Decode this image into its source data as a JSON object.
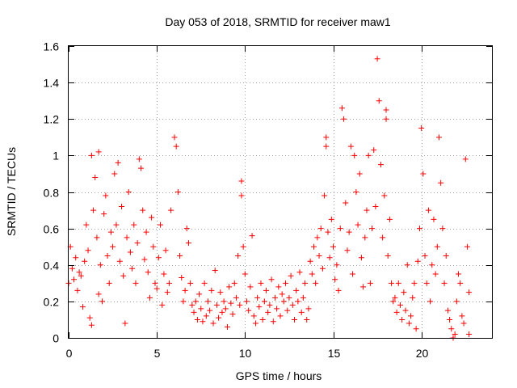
{
  "chart_data": {
    "type": "scatter",
    "title": "Day 053 of 2018, SRMTID for receiver maw1",
    "xlabel": "GPS time / hours",
    "ylabel": "SRMTID / TECUs",
    "xlim": [
      0,
      24
    ],
    "ylim": [
      0,
      1.6
    ],
    "xticks": [
      0,
      5,
      10,
      15,
      20
    ],
    "yticks": [
      0,
      0.2,
      0.4,
      0.6,
      0.8,
      1,
      1.2,
      1.4,
      1.6
    ],
    "xtick_labels": [
      "0",
      "5",
      "10",
      "15",
      "20"
    ],
    "ytick_labels": [
      "0",
      "0.2",
      "0.4",
      "0.6",
      "0.8",
      "1",
      "1.2",
      "1.4",
      "1.6"
    ],
    "grid": true,
    "marker": "+",
    "color": "#ff0000",
    "series": [
      {
        "name": "SRMTID",
        "points": [
          [
            0.0,
            0.3
          ],
          [
            0.1,
            0.5
          ],
          [
            0.2,
            0.38
          ],
          [
            0.3,
            0.32
          ],
          [
            0.4,
            0.44
          ],
          [
            0.5,
            0.26
          ],
          [
            0.6,
            0.36
          ],
          [
            0.7,
            0.34
          ],
          [
            0.8,
            0.17
          ],
          [
            0.9,
            0.42
          ],
          [
            1.0,
            0.62
          ],
          [
            1.1,
            0.48
          ],
          [
            1.2,
            0.11
          ],
          [
            1.3,
            0.07
          ],
          [
            1.3,
            1.0
          ],
          [
            1.4,
            0.7
          ],
          [
            1.5,
            0.88
          ],
          [
            1.6,
            0.55
          ],
          [
            1.7,
            0.24
          ],
          [
            1.7,
            1.02
          ],
          [
            1.8,
            0.4
          ],
          [
            1.9,
            0.2
          ],
          [
            2.0,
            0.68
          ],
          [
            2.1,
            0.78
          ],
          [
            2.2,
            0.45
          ],
          [
            2.3,
            0.3
          ],
          [
            2.4,
            0.58
          ],
          [
            2.5,
            0.5
          ],
          [
            2.6,
            0.9
          ],
          [
            2.7,
            0.62
          ],
          [
            2.8,
            0.96
          ],
          [
            2.9,
            0.42
          ],
          [
            3.0,
            0.72
          ],
          [
            3.1,
            0.34
          ],
          [
            3.2,
            0.08
          ],
          [
            3.3,
            0.55
          ],
          [
            3.4,
            0.8
          ],
          [
            3.5,
            0.47
          ],
          [
            3.6,
            0.38
          ],
          [
            3.7,
            0.62
          ],
          [
            3.8,
            0.3
          ],
          [
            3.9,
            0.52
          ],
          [
            4.0,
            0.98
          ],
          [
            4.1,
            0.93
          ],
          [
            4.2,
            0.7
          ],
          [
            4.3,
            0.43
          ],
          [
            4.4,
            0.58
          ],
          [
            4.5,
            0.36
          ],
          [
            4.6,
            0.22
          ],
          [
            4.7,
            0.66
          ],
          [
            4.8,
            0.5
          ],
          [
            4.9,
            0.3
          ],
          [
            5.0,
            0.27
          ],
          [
            5.1,
            0.44
          ],
          [
            5.2,
            0.62
          ],
          [
            5.3,
            0.18
          ],
          [
            5.4,
            0.35
          ],
          [
            5.5,
            0.48
          ],
          [
            5.6,
            0.25
          ],
          [
            5.7,
            0.3
          ],
          [
            5.8,
            0.7
          ],
          [
            6.0,
            1.1
          ],
          [
            6.1,
            1.05
          ],
          [
            6.2,
            0.8
          ],
          [
            6.3,
            0.45
          ],
          [
            6.4,
            0.33
          ],
          [
            6.5,
            0.2
          ],
          [
            6.6,
            0.26
          ],
          [
            6.7,
            0.6
          ],
          [
            6.8,
            0.52
          ],
          [
            6.9,
            0.3
          ],
          [
            7.0,
            0.18
          ],
          [
            7.1,
            0.14
          ],
          [
            7.2,
            0.2
          ],
          [
            7.3,
            0.1
          ],
          [
            7.4,
            0.24
          ],
          [
            7.5,
            0.16
          ],
          [
            7.6,
            0.09
          ],
          [
            7.7,
            0.3
          ],
          [
            7.8,
            0.12
          ],
          [
            7.9,
            0.2
          ],
          [
            8.0,
            0.15
          ],
          [
            8.1,
            0.26
          ],
          [
            8.2,
            0.08
          ],
          [
            8.3,
            0.37
          ],
          [
            8.4,
            0.18
          ],
          [
            8.5,
            0.11
          ],
          [
            8.6,
            0.25
          ],
          [
            8.7,
            0.14
          ],
          [
            8.8,
            0.2
          ],
          [
            8.9,
            0.16
          ],
          [
            9.0,
            0.06
          ],
          [
            9.1,
            0.28
          ],
          [
            9.2,
            0.19
          ],
          [
            9.3,
            0.13
          ],
          [
            9.4,
            0.3
          ],
          [
            9.5,
            0.22
          ],
          [
            9.6,
            0.45
          ],
          [
            9.7,
            0.18
          ],
          [
            9.8,
            0.86
          ],
          [
            9.8,
            0.78
          ],
          [
            9.9,
            0.5
          ],
          [
            10.0,
            0.35
          ],
          [
            10.1,
            0.2
          ],
          [
            10.2,
            0.15
          ],
          [
            10.3,
            0.28
          ],
          [
            10.4,
            0.56
          ],
          [
            10.5,
            0.12
          ],
          [
            10.6,
            0.08
          ],
          [
            10.7,
            0.22
          ],
          [
            10.8,
            0.17
          ],
          [
            10.9,
            0.3
          ],
          [
            11.0,
            0.1
          ],
          [
            11.1,
            0.2
          ],
          [
            11.2,
            0.26
          ],
          [
            11.3,
            0.14
          ],
          [
            11.4,
            0.18
          ],
          [
            11.5,
            0.32
          ],
          [
            11.6,
            0.09
          ],
          [
            11.7,
            0.22
          ],
          [
            11.8,
            0.16
          ],
          [
            11.9,
            0.28
          ],
          [
            12.0,
            0.12
          ],
          [
            12.1,
            0.24
          ],
          [
            12.2,
            0.2
          ],
          [
            12.3,
            0.3
          ],
          [
            12.4,
            0.15
          ],
          [
            12.5,
            0.22
          ],
          [
            12.6,
            0.34
          ],
          [
            12.7,
            0.18
          ],
          [
            12.8,
            0.1
          ],
          [
            12.9,
            0.26
          ],
          [
            13.0,
            0.2
          ],
          [
            13.1,
            0.36
          ],
          [
            13.2,
            0.14
          ],
          [
            13.3,
            0.22
          ],
          [
            13.4,
            0.3
          ],
          [
            13.5,
            0.1
          ],
          [
            13.6,
            0.16
          ],
          [
            13.7,
            0.42
          ],
          [
            13.8,
            0.35
          ],
          [
            13.9,
            0.5
          ],
          [
            14.0,
            0.3
          ],
          [
            14.1,
            0.55
          ],
          [
            14.2,
            0.45
          ],
          [
            14.3,
            0.6
          ],
          [
            14.4,
            0.38
          ],
          [
            14.5,
            0.78
          ],
          [
            14.6,
            1.1
          ],
          [
            14.6,
            1.05
          ],
          [
            14.7,
            0.58
          ],
          [
            14.8,
            0.44
          ],
          [
            14.9,
            0.65
          ],
          [
            15.0,
            0.5
          ],
          [
            15.1,
            0.32
          ],
          [
            15.2,
            0.4
          ],
          [
            15.3,
            0.26
          ],
          [
            15.4,
            0.6
          ],
          [
            15.5,
            1.26
          ],
          [
            15.6,
            1.2
          ],
          [
            15.7,
            0.74
          ],
          [
            15.8,
            0.48
          ],
          [
            15.9,
            0.58
          ],
          [
            16.0,
            1.05
          ],
          [
            16.1,
            0.35
          ],
          [
            16.2,
            1.0
          ],
          [
            16.3,
            0.8
          ],
          [
            16.4,
            0.62
          ],
          [
            16.5,
            0.9
          ],
          [
            16.6,
            0.44
          ],
          [
            16.7,
            0.28
          ],
          [
            16.8,
            0.55
          ],
          [
            16.9,
            0.7
          ],
          [
            17.0,
            1.0
          ],
          [
            17.1,
            0.3
          ],
          [
            17.2,
            0.6
          ],
          [
            17.3,
            1.03
          ],
          [
            17.4,
            0.72
          ],
          [
            17.5,
            1.53
          ],
          [
            17.6,
            1.3
          ],
          [
            17.7,
            0.95
          ],
          [
            17.8,
            0.55
          ],
          [
            17.9,
            0.78
          ],
          [
            18.0,
            1.2
          ],
          [
            18.0,
            1.25
          ],
          [
            18.1,
            0.45
          ],
          [
            18.2,
            0.65
          ],
          [
            18.3,
            0.3
          ],
          [
            18.4,
            0.2
          ],
          [
            18.5,
            0.22
          ],
          [
            18.6,
            0.14
          ],
          [
            18.7,
            0.3
          ],
          [
            18.8,
            0.18
          ],
          [
            18.9,
            0.1
          ],
          [
            19.0,
            0.25
          ],
          [
            19.1,
            0.15
          ],
          [
            19.2,
            0.4
          ],
          [
            19.3,
            0.08
          ],
          [
            19.4,
            0.12
          ],
          [
            19.5,
            0.22
          ],
          [
            19.6,
            0.3
          ],
          [
            19.7,
            0.05
          ],
          [
            19.8,
            0.42
          ],
          [
            19.9,
            0.6
          ],
          [
            20.0,
            1.15
          ],
          [
            20.1,
            0.9
          ],
          [
            20.2,
            0.45
          ],
          [
            20.3,
            0.3
          ],
          [
            20.4,
            0.7
          ],
          [
            20.5,
            0.2
          ],
          [
            20.6,
            0.4
          ],
          [
            20.7,
            0.65
          ],
          [
            20.8,
            0.35
          ],
          [
            20.9,
            0.5
          ],
          [
            21.0,
            1.1
          ],
          [
            21.1,
            0.85
          ],
          [
            21.2,
            0.6
          ],
          [
            21.3,
            0.3
          ],
          [
            21.4,
            0.45
          ],
          [
            21.5,
            0.15
          ],
          [
            21.6,
            0.1
          ],
          [
            21.7,
            0.05
          ],
          [
            21.8,
            0.0
          ],
          [
            21.9,
            0.02
          ],
          [
            22.0,
            0.2
          ],
          [
            22.1,
            0.35
          ],
          [
            22.2,
            0.3
          ],
          [
            22.3,
            0.12
          ],
          [
            22.4,
            0.08
          ],
          [
            22.5,
            0.98
          ],
          [
            22.6,
            0.5
          ],
          [
            22.7,
            0.25
          ],
          [
            22.7,
            0.02
          ]
        ]
      }
    ]
  }
}
